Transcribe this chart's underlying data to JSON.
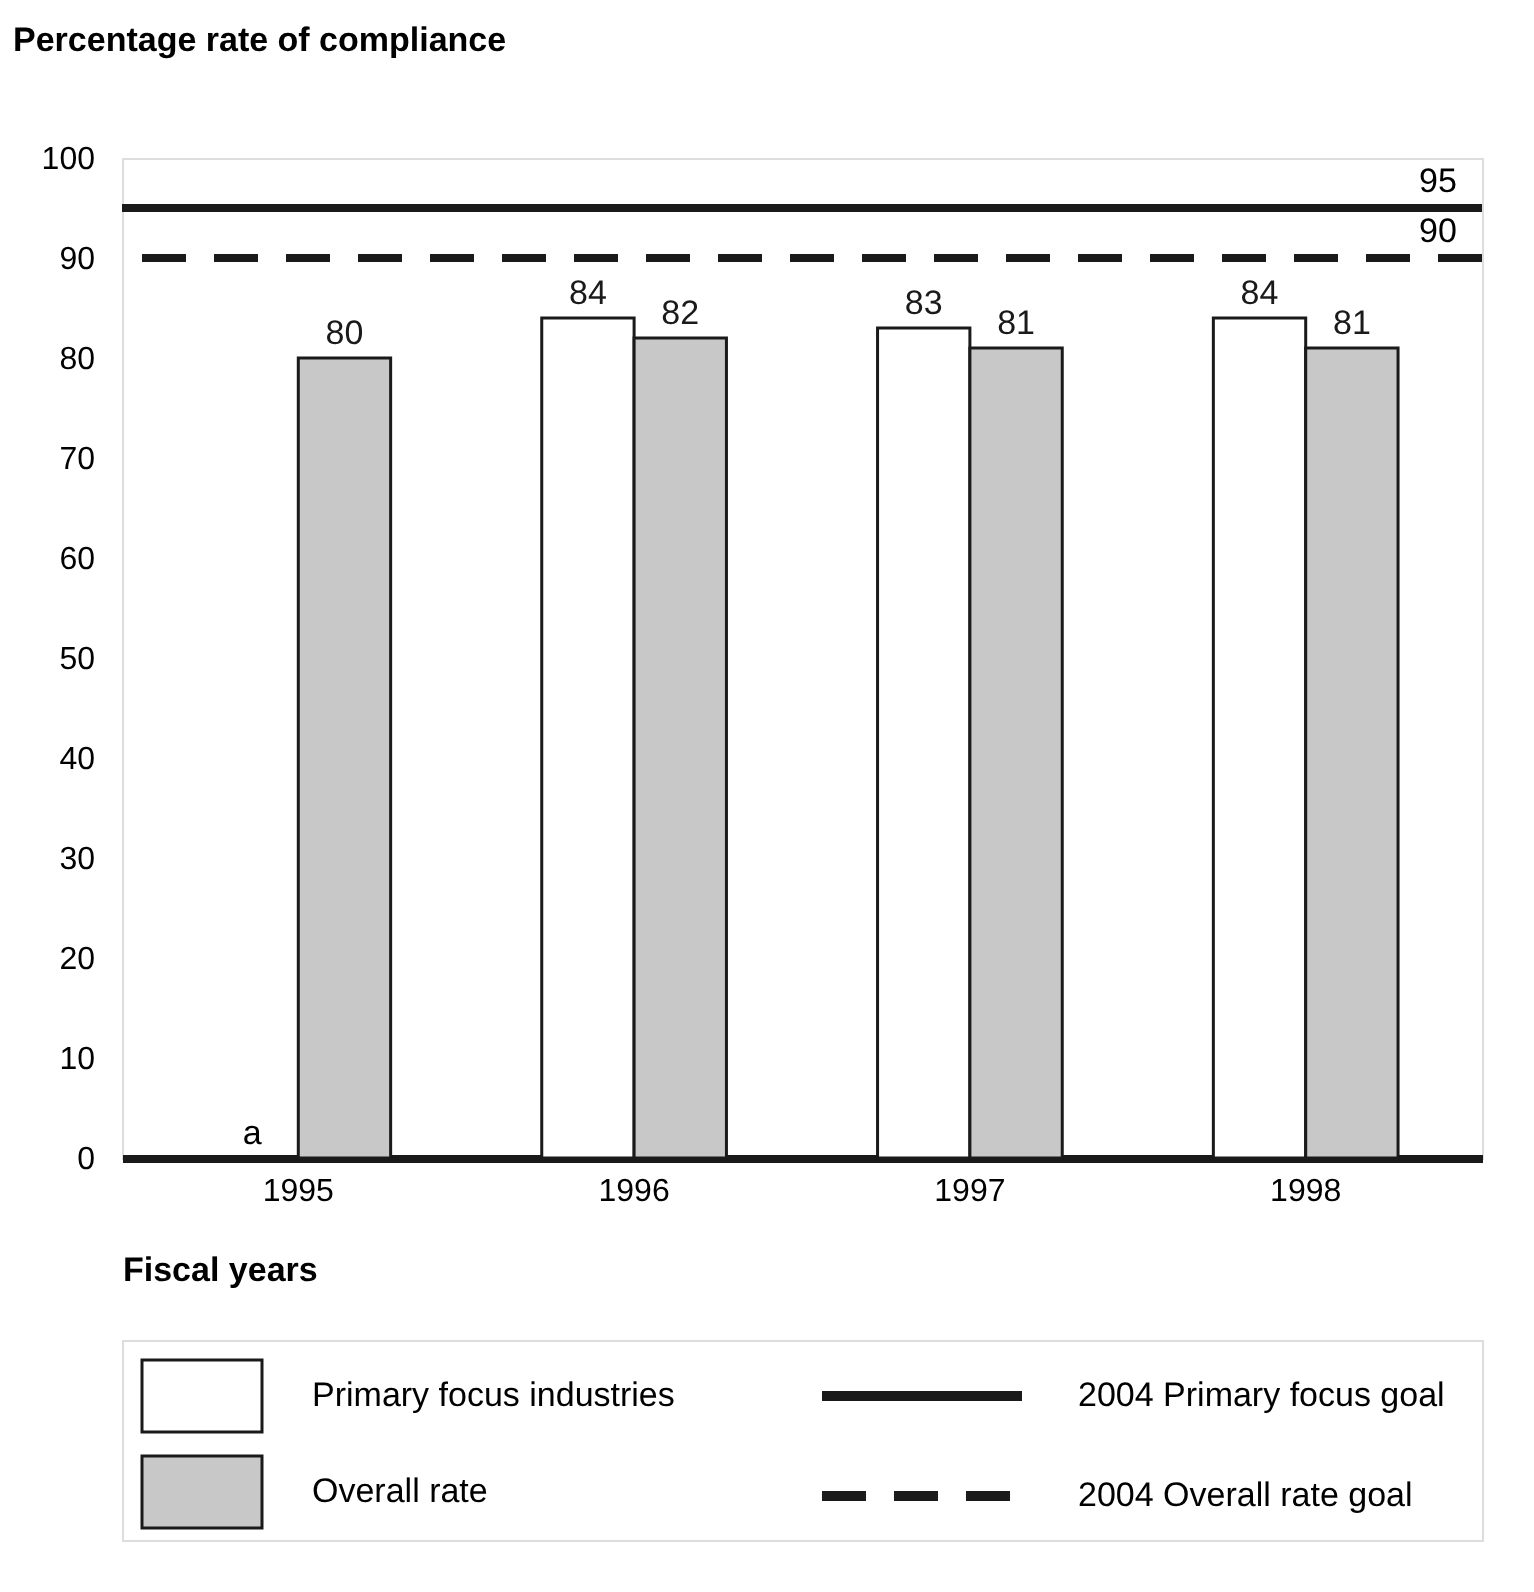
{
  "chart_data": {
    "type": "bar",
    "ylabel": "Percentage rate of compliance",
    "xlabel": "Fiscal years",
    "categories": [
      "1995",
      "1996",
      "1997",
      "1998"
    ],
    "series": [
      {
        "name": "Primary focus industries",
        "color": "#ffffff",
        "values": [
          null,
          84,
          83,
          84
        ]
      },
      {
        "name": "Overall rate",
        "color": "#c8c8c8",
        "values": [
          80,
          82,
          81,
          81
        ]
      }
    ],
    "ylim": [
      0,
      100
    ],
    "yticks": [
      0,
      10,
      20,
      30,
      40,
      50,
      60,
      70,
      80,
      90,
      100
    ],
    "data_labels": true,
    "legend": "bottom",
    "ref_lines": [
      {
        "axis": "y",
        "value": 95,
        "label": "95",
        "color": "#1a1a1a",
        "line_style": "solid"
      },
      {
        "axis": "y",
        "value": 90,
        "label": "90",
        "color": "#1a1a1a",
        "line_style": "dashed"
      }
    ],
    "annotations": [
      {
        "text": "a",
        "x": "1995",
        "y": 0
      },
      "2004 Primary focus goal",
      "2004 Overall rate goal"
    ]
  }
}
